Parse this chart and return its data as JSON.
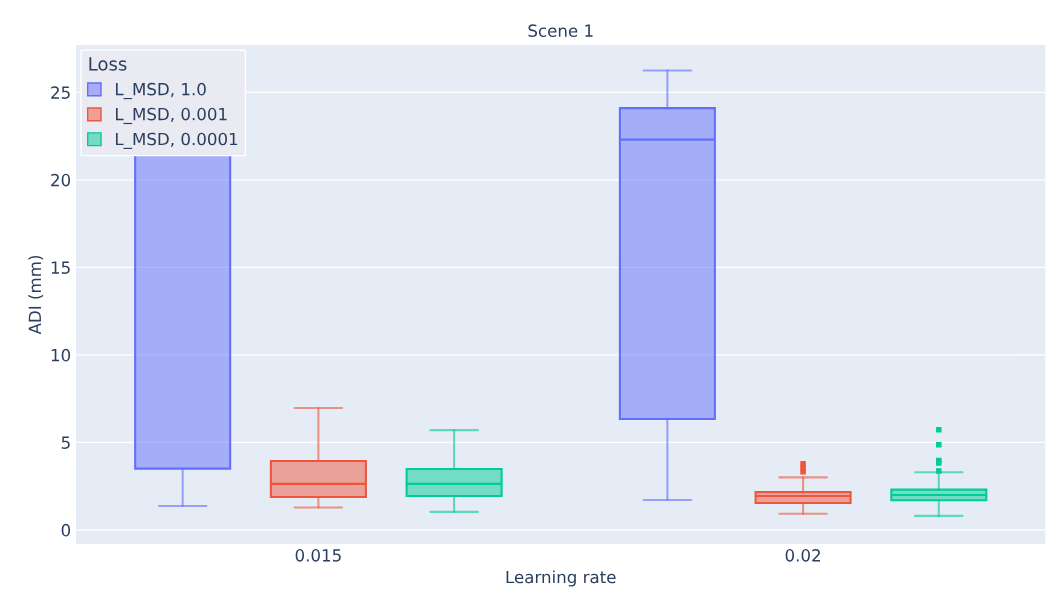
{
  "chart_data": {
    "type": "box",
    "title": "Scene 1",
    "xlabel": "Learning rate",
    "ylabel": "ADI (mm)",
    "legend_title": "Loss",
    "categories": [
      "0.015",
      "0.02"
    ],
    "series": [
      {
        "name": "L_MSD, 1.0",
        "color": "#636efa",
        "boxes": [
          {
            "low": 1.37,
            "q1": 3.5,
            "median": 21.5,
            "q3": 23.5,
            "high": 26.0
          },
          {
            "low": 1.71,
            "q1": 6.34,
            "median": 22.3,
            "q3": 24.1,
            "high": 26.25
          }
        ]
      },
      {
        "name": "L_MSD, 0.001",
        "color": "#ef553b",
        "boxes": [
          {
            "low": 1.28,
            "q1": 1.88,
            "median": 2.63,
            "q3": 3.94,
            "high": 6.96
          },
          {
            "low": 0.92,
            "q1": 1.54,
            "median": 1.94,
            "q3": 2.17,
            "high": 3.0,
            "outliers": [
              3.32,
              3.52,
              3.78
            ]
          }
        ]
      },
      {
        "name": "L_MSD, 0.0001",
        "color": "#00cc96",
        "boxes": [
          {
            "low": 1.03,
            "q1": 1.94,
            "median": 2.63,
            "q3": 3.48,
            "high": 5.7
          },
          {
            "low": 0.8,
            "q1": 1.69,
            "median": 1.99,
            "q3": 2.3,
            "high": 3.29,
            "outliers": [
              3.37,
              3.82,
              3.97,
              4.86,
              5.72
            ]
          }
        ]
      }
    ],
    "ylim": [
      -0.8,
      27.7
    ],
    "yticks": [
      0,
      5,
      10,
      15,
      20,
      25
    ],
    "grid": "y",
    "legend": "top left"
  }
}
